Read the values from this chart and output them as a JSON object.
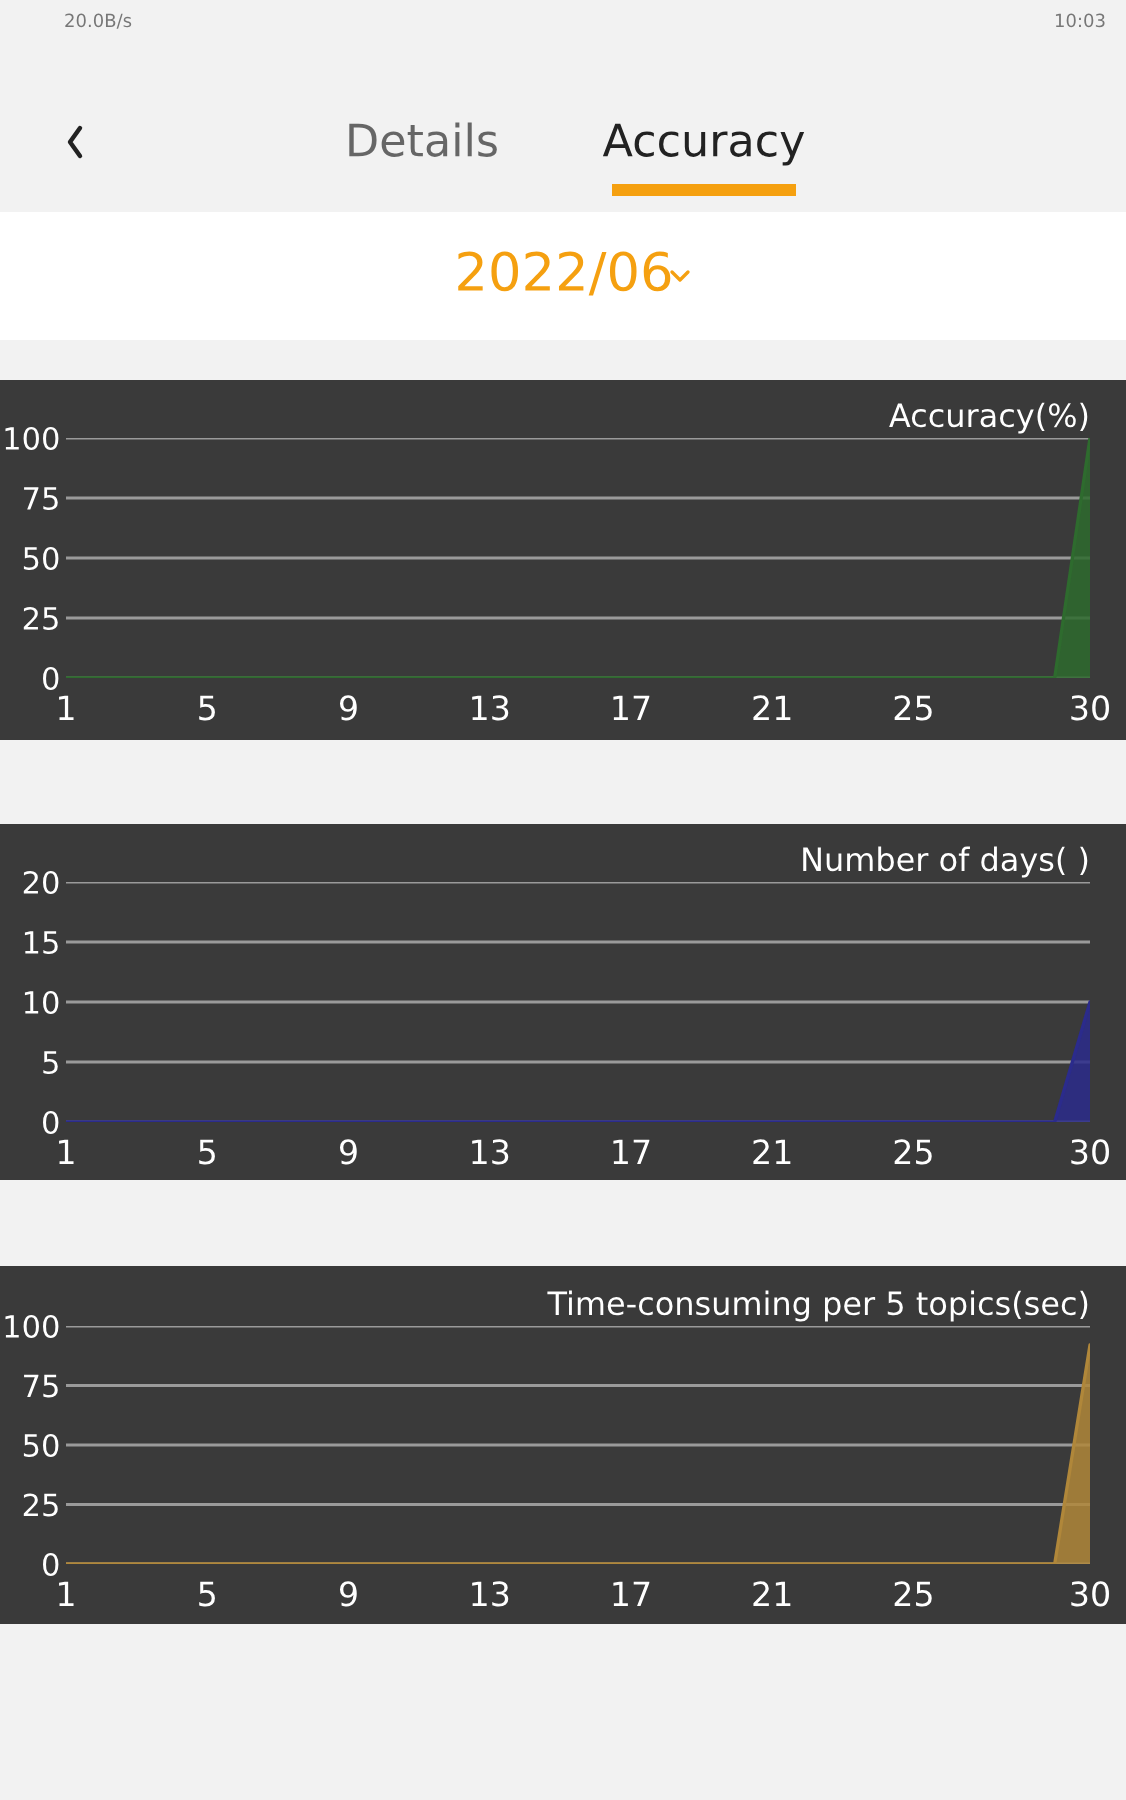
{
  "chart_data": [
    {
      "type": "area",
      "title": "Accuracy(%)",
      "annotations": [
        "20.0B/s",
        "10:03",
        "Details",
        "Accuracy",
        "2022/06"
      ],
      "x": [
        1,
        2,
        3,
        4,
        5,
        6,
        7,
        8,
        9,
        10,
        11,
        12,
        13,
        14,
        15,
        16,
        17,
        18,
        19,
        20,
        21,
        22,
        23,
        24,
        25,
        26,
        27,
        28,
        29,
        30
      ],
      "series": [
        {
          "color": "#2e6b2e",
          "values": [
            0,
            0,
            0,
            0,
            0,
            0,
            0,
            0,
            0,
            0,
            0,
            0,
            0,
            0,
            0,
            0,
            0,
            0,
            0,
            0,
            0,
            0,
            0,
            0,
            0,
            0,
            0,
            0,
            0,
            100
          ]
        }
      ],
      "xlim": [
        1,
        30
      ],
      "xticks": [
        1,
        5,
        9,
        13,
        17,
        21,
        25,
        30
      ],
      "ylim": [
        0,
        100
      ],
      "yticks": [
        0,
        25,
        50,
        75,
        100
      ],
      "grid": "y"
    },
    {
      "type": "area",
      "title": "Number of days( )",
      "x": [
        1,
        2,
        3,
        4,
        5,
        6,
        7,
        8,
        9,
        10,
        11,
        12,
        13,
        14,
        15,
        16,
        17,
        18,
        19,
        20,
        21,
        22,
        23,
        24,
        25,
        26,
        27,
        28,
        29,
        30
      ],
      "series": [
        {
          "color": "#2b2b8c",
          "values": [
            0,
            0,
            0,
            0,
            0,
            0,
            0,
            0,
            0,
            0,
            0,
            0,
            0,
            0,
            0,
            0,
            0,
            0,
            0,
            0,
            0,
            0,
            0,
            0,
            0,
            0,
            0,
            0,
            0,
            10
          ]
        }
      ],
      "xlim": [
        1,
        30
      ],
      "xticks": [
        1,
        5,
        9,
        13,
        17,
        21,
        25,
        30
      ],
      "ylim": [
        0,
        20
      ],
      "yticks": [
        0,
        5,
        10,
        15,
        20
      ],
      "grid": "y"
    },
    {
      "type": "area",
      "title": "Time-consuming per 5 topics(sec)",
      "x": [
        1,
        2,
        3,
        4,
        5,
        6,
        7,
        8,
        9,
        10,
        11,
        12,
        13,
        14,
        15,
        16,
        17,
        18,
        19,
        20,
        21,
        22,
        23,
        24,
        25,
        26,
        27,
        28,
        29,
        30
      ],
      "series": [
        {
          "color": "#b0873a",
          "values": [
            0,
            0,
            0,
            0,
            0,
            0,
            0,
            0,
            0,
            0,
            0,
            0,
            0,
            0,
            0,
            0,
            0,
            0,
            0,
            0,
            0,
            0,
            0,
            0,
            0,
            0,
            0,
            0,
            0,
            92
          ]
        }
      ],
      "xlim": [
        1,
        30
      ],
      "xticks": [
        1,
        5,
        9,
        13,
        17,
        21,
        25,
        30
      ],
      "ylim": [
        0,
        100
      ],
      "yticks": [
        0,
        25,
        50,
        75,
        100
      ],
      "grid": "y"
    }
  ]
}
